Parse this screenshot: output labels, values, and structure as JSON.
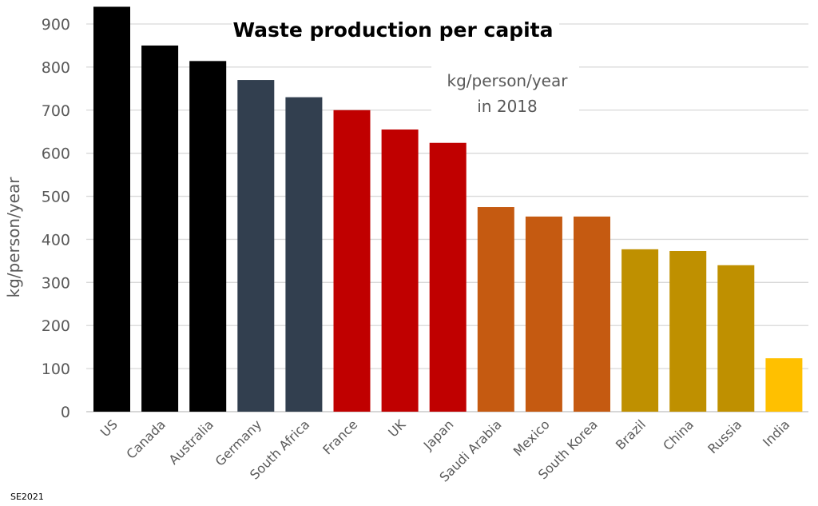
{
  "chart_data": {
    "type": "bar",
    "title": "Waste production per capita",
    "subtitle_lines": [
      "kg/person/year",
      "in 2018"
    ],
    "xlabel": "",
    "ylabel": "kg/person/year",
    "ylim": [
      0,
      950
    ],
    "yticks": [
      0,
      100,
      200,
      300,
      400,
      500,
      600,
      700,
      800,
      900
    ],
    "grid": true,
    "categories": [
      "US",
      "Canada",
      "Australia",
      "Germany",
      "South Africa",
      "France",
      "UK",
      "Japan",
      "Saudi Arabia",
      "Mexico",
      "South Korea",
      "Brazil",
      "China",
      "Russia",
      "India"
    ],
    "values": [
      940,
      850,
      814,
      770,
      730,
      700,
      655,
      624,
      475,
      453,
      453,
      377,
      373,
      340,
      124
    ],
    "colors": [
      "#000000",
      "#000000",
      "#000000",
      "#323F4F",
      "#323F4F",
      "#C00000",
      "#C00000",
      "#C00000",
      "#C55A11",
      "#C55A11",
      "#C55A11",
      "#BF9000",
      "#BF9000",
      "#BF9000",
      "#FFC000"
    ],
    "credit": "SE2021"
  }
}
